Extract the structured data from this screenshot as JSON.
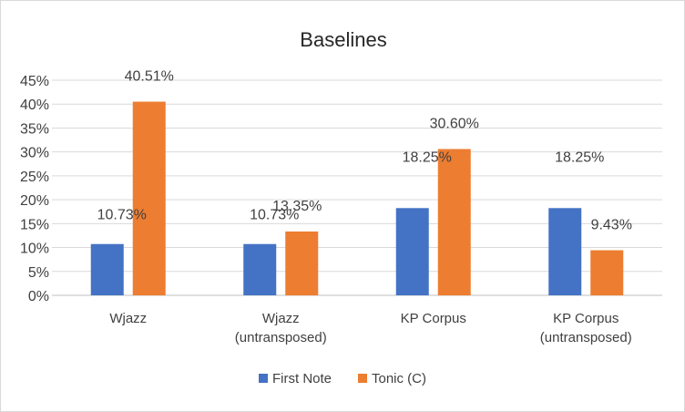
{
  "chart_data": {
    "type": "bar",
    "title": "Baselines",
    "categories": [
      [
        "Wjazz"
      ],
      [
        "Wjazz",
        "(untransposed)"
      ],
      [
        "KP Corpus"
      ],
      [
        "KP Corpus",
        "(untransposed)"
      ]
    ],
    "series": [
      {
        "name": "First Note",
        "color": "#4472C4",
        "values": [
          10.73,
          10.73,
          18.25,
          18.25
        ],
        "labels": [
          "10.73%",
          "10.73%",
          "18.25%",
          "18.25%"
        ]
      },
      {
        "name": "Tonic (C)",
        "color": "#ED7D31",
        "values": [
          40.51,
          13.35,
          30.6,
          9.43
        ],
        "labels": [
          "40.51%",
          "13.35%",
          "30.60%",
          "9.43%"
        ]
      }
    ],
    "ylim": [
      0,
      45
    ],
    "yticks": [
      0,
      5,
      10,
      15,
      20,
      25,
      30,
      35,
      40,
      45
    ],
    "ytick_labels": [
      "0%",
      "5%",
      "10%",
      "15%",
      "20%",
      "25%",
      "30%",
      "35%",
      "40%",
      "45%"
    ],
    "grid": true,
    "legend_position": "bottom"
  }
}
